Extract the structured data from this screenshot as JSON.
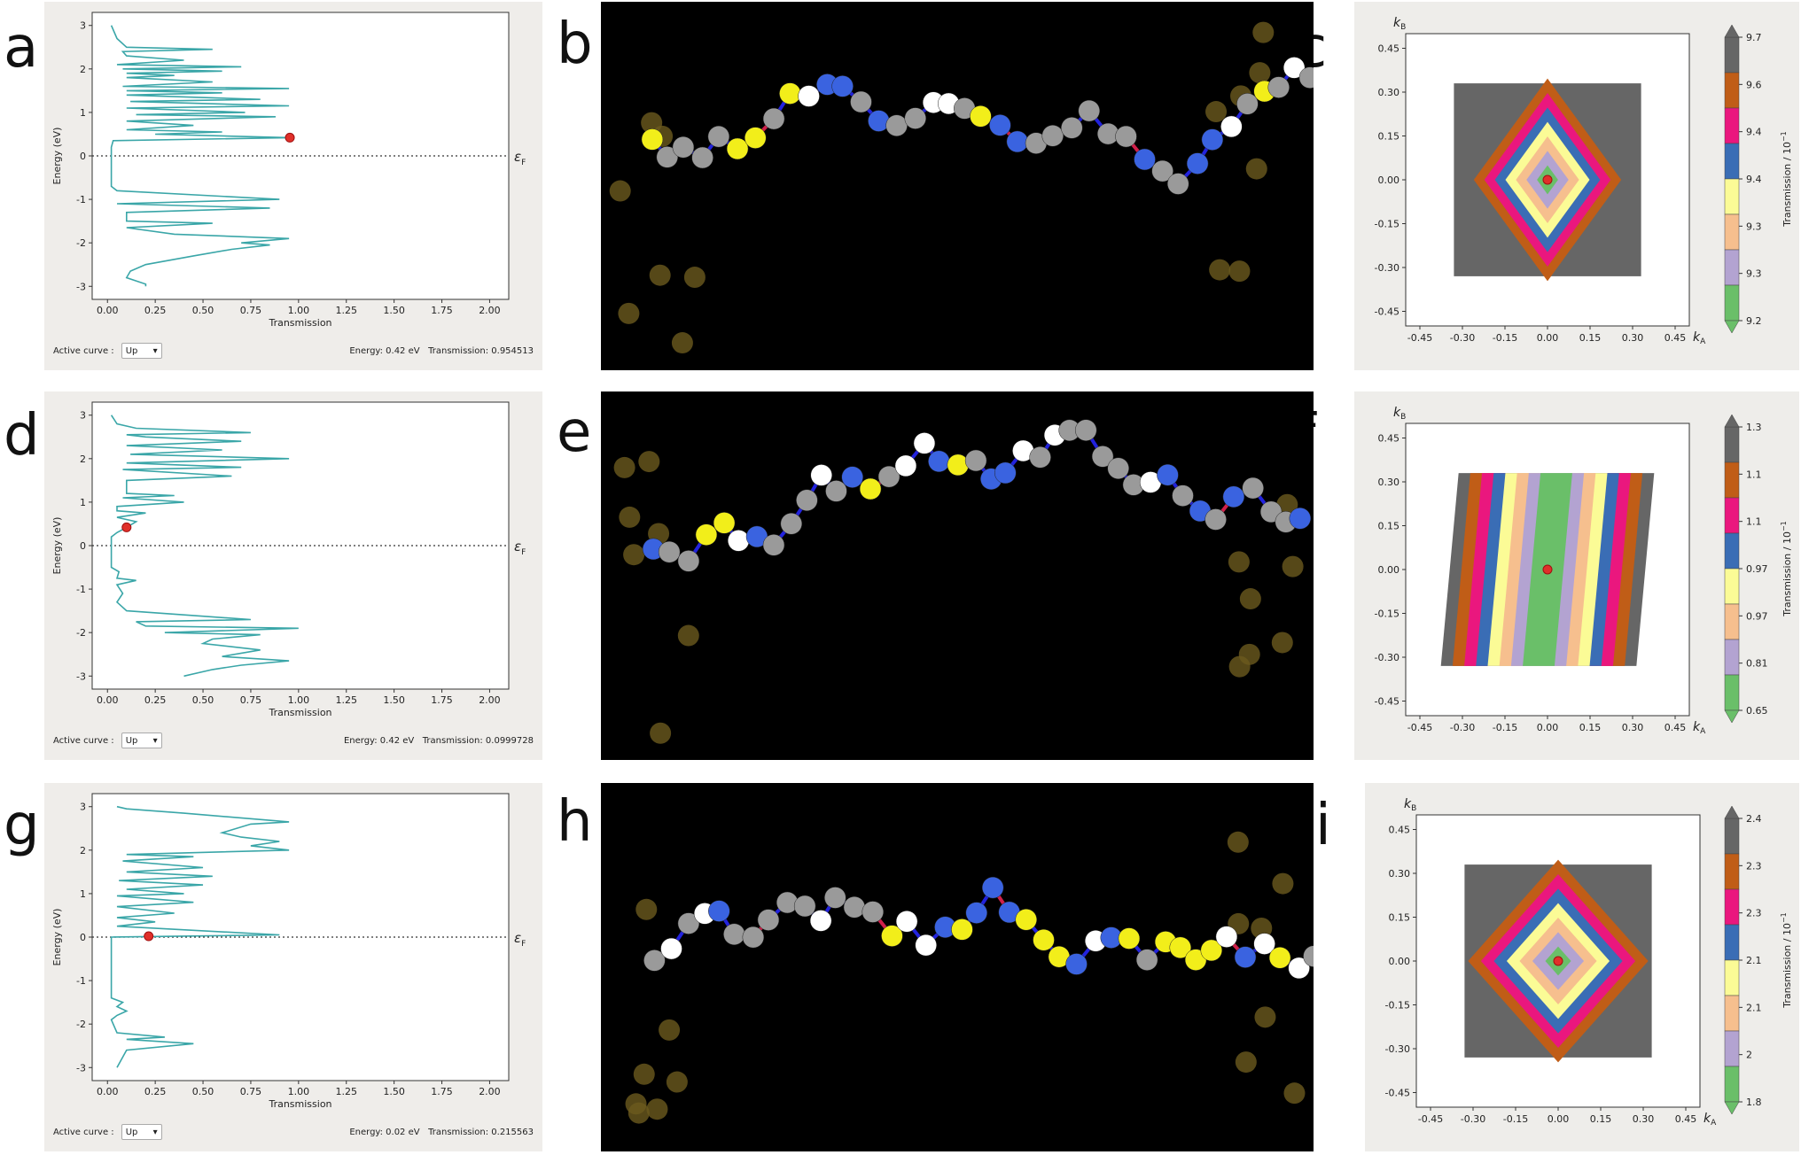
{
  "panel_labels": [
    "a",
    "b",
    "c",
    "d",
    "e",
    "f",
    "g",
    "h",
    "i"
  ],
  "transmission_panels": [
    {
      "id": "a",
      "active_curve_label": "Active curve :",
      "active_curve_value": "Up",
      "status": "Energy: 0.42 eV   Transmission: 0.954513",
      "fermi_label": "ε",
      "fermi_sub": "F",
      "marker": {
        "transmission": 0.954513,
        "energy": 0.42
      },
      "chart_data": {
        "type": "line",
        "xlabel": "Transmission",
        "ylabel": "Energy (eV)",
        "xlim": [
          -0.08,
          2.1
        ],
        "ylim": [
          -3.3,
          3.3
        ],
        "xticks": [
          "0.00",
          "0.25",
          "0.50",
          "0.75",
          "1.00",
          "1.25",
          "1.50",
          "1.75",
          "2.00"
        ],
        "yticks": [
          "-3",
          "-2",
          "-1",
          "0",
          "1",
          "2",
          "3"
        ],
        "series": [
          {
            "color": "#3aa6a8",
            "points": [
              [
                0.02,
                3.0
              ],
              [
                0.05,
                2.7
              ],
              [
                0.1,
                2.5
              ],
              [
                0.55,
                2.45
              ],
              [
                0.08,
                2.4
              ],
              [
                0.1,
                2.3
              ],
              [
                0.4,
                2.2
              ],
              [
                0.05,
                2.1
              ],
              [
                0.7,
                2.05
              ],
              [
                0.08,
                2.0
              ],
              [
                0.6,
                1.95
              ],
              [
                0.1,
                1.9
              ],
              [
                0.35,
                1.85
              ],
              [
                0.1,
                1.8
              ],
              [
                0.55,
                1.7
              ],
              [
                0.08,
                1.6
              ],
              [
                0.95,
                1.55
              ],
              [
                0.1,
                1.5
              ],
              [
                0.6,
                1.45
              ],
              [
                0.1,
                1.4
              ],
              [
                0.8,
                1.3
              ],
              [
                0.12,
                1.25
              ],
              [
                0.95,
                1.15
              ],
              [
                0.1,
                1.1
              ],
              [
                0.72,
                1.0
              ],
              [
                0.15,
                0.95
              ],
              [
                0.88,
                0.9
              ],
              [
                0.1,
                0.8
              ],
              [
                0.45,
                0.7
              ],
              [
                0.1,
                0.6
              ],
              [
                0.6,
                0.55
              ],
              [
                0.25,
                0.5
              ],
              [
                0.954,
                0.42
              ],
              [
                0.03,
                0.35
              ],
              [
                0.02,
                0.2
              ],
              [
                0.02,
                -0.7
              ],
              [
                0.05,
                -0.8
              ],
              [
                0.9,
                -1.0
              ],
              [
                0.05,
                -1.1
              ],
              [
                0.85,
                -1.2
              ],
              [
                0.1,
                -1.3
              ],
              [
                0.1,
                -1.5
              ],
              [
                0.55,
                -1.55
              ],
              [
                0.1,
                -1.65
              ],
              [
                0.35,
                -1.8
              ],
              [
                0.95,
                -1.9
              ],
              [
                0.7,
                -2.0
              ],
              [
                0.85,
                -2.05
              ],
              [
                0.65,
                -2.15
              ],
              [
                0.45,
                -2.3
              ],
              [
                0.2,
                -2.5
              ],
              [
                0.12,
                -2.65
              ],
              [
                0.1,
                -2.8
              ],
              [
                0.2,
                -2.95
              ],
              [
                0.2,
                -3.0
              ]
            ]
          }
        ]
      }
    },
    {
      "id": "d",
      "active_curve_label": "Active curve :",
      "active_curve_value": "Up",
      "status": "Energy: 0.42 eV   Transmission: 0.0999728",
      "fermi_label": "ε",
      "fermi_sub": "F",
      "marker": {
        "transmission": 0.0999728,
        "energy": 0.42
      },
      "chart_data": {
        "type": "line",
        "xlabel": "Transmission",
        "ylabel": "Energy (eV)",
        "xlim": [
          -0.08,
          2.1
        ],
        "ylim": [
          -3.3,
          3.3
        ],
        "xticks": [
          "0.00",
          "0.25",
          "0.50",
          "0.75",
          "1.00",
          "1.25",
          "1.50",
          "1.75",
          "2.00"
        ],
        "yticks": [
          "-3",
          "-2",
          "-1",
          "0",
          "1",
          "2",
          "3"
        ],
        "series": [
          {
            "color": "#3aa6a8",
            "points": [
              [
                0.02,
                3.0
              ],
              [
                0.05,
                2.8
              ],
              [
                0.15,
                2.7
              ],
              [
                0.75,
                2.6
              ],
              [
                0.1,
                2.55
              ],
              [
                0.2,
                2.5
              ],
              [
                0.7,
                2.4
              ],
              [
                0.1,
                2.3
              ],
              [
                0.6,
                2.2
              ],
              [
                0.12,
                2.1
              ],
              [
                0.95,
                2.0
              ],
              [
                0.1,
                1.9
              ],
              [
                0.7,
                1.8
              ],
              [
                0.08,
                1.75
              ],
              [
                0.65,
                1.6
              ],
              [
                0.1,
                1.5
              ],
              [
                0.1,
                1.2
              ],
              [
                0.35,
                1.15
              ],
              [
                0.08,
                1.1
              ],
              [
                0.4,
                1.0
              ],
              [
                0.05,
                0.9
              ],
              [
                0.05,
                0.8
              ],
              [
                0.2,
                0.75
              ],
              [
                0.05,
                0.65
              ],
              [
                0.15,
                0.55
              ],
              [
                0.1,
                0.42
              ],
              [
                0.05,
                0.3
              ],
              [
                0.02,
                0.2
              ],
              [
                0.02,
                -0.5
              ],
              [
                0.06,
                -0.6
              ],
              [
                0.05,
                -0.75
              ],
              [
                0.15,
                -0.8
              ],
              [
                0.05,
                -0.9
              ],
              [
                0.08,
                -1.1
              ],
              [
                0.05,
                -1.3
              ],
              [
                0.1,
                -1.5
              ],
              [
                0.75,
                -1.7
              ],
              [
                0.15,
                -1.75
              ],
              [
                0.2,
                -1.85
              ],
              [
                1.0,
                -1.9
              ],
              [
                0.3,
                -2.0
              ],
              [
                0.8,
                -2.05
              ],
              [
                0.55,
                -2.15
              ],
              [
                0.5,
                -2.25
              ],
              [
                0.8,
                -2.4
              ],
              [
                0.6,
                -2.55
              ],
              [
                0.95,
                -2.65
              ],
              [
                0.7,
                -2.75
              ],
              [
                0.55,
                -2.85
              ],
              [
                0.4,
                -3.0
              ]
            ]
          }
        ]
      }
    },
    {
      "id": "g",
      "active_curve_label": "Active curve :",
      "active_curve_value": "Up",
      "status": "Energy: 0.02 eV   Transmission: 0.215563",
      "fermi_label": "ε",
      "fermi_sub": "F",
      "marker": {
        "transmission": 0.215563,
        "energy": 0.02
      },
      "chart_data": {
        "type": "line",
        "xlabel": "Transmission",
        "ylabel": "Energy (eV)",
        "xlim": [
          -0.08,
          2.1
        ],
        "ylim": [
          -3.3,
          3.3
        ],
        "xticks": [
          "0.00",
          "0.25",
          "0.50",
          "0.75",
          "1.00",
          "1.25",
          "1.50",
          "1.75",
          "2.00"
        ],
        "yticks": [
          "-3",
          "-2",
          "-1",
          "0",
          "1",
          "2",
          "3"
        ],
        "series": [
          {
            "color": "#3aa6a8",
            "points": [
              [
                0.05,
                3.0
              ],
              [
                0.1,
                2.95
              ],
              [
                0.4,
                2.85
              ],
              [
                0.95,
                2.65
              ],
              [
                0.75,
                2.6
              ],
              [
                0.6,
                2.4
              ],
              [
                0.7,
                2.3
              ],
              [
                0.9,
                2.2
              ],
              [
                0.75,
                2.1
              ],
              [
                0.95,
                2.0
              ],
              [
                0.1,
                1.9
              ],
              [
                0.45,
                1.85
              ],
              [
                0.08,
                1.75
              ],
              [
                0.5,
                1.6
              ],
              [
                0.1,
                1.5
              ],
              [
                0.55,
                1.4
              ],
              [
                0.06,
                1.3
              ],
              [
                0.5,
                1.2
              ],
              [
                0.1,
                1.1
              ],
              [
                0.4,
                1.0
              ],
              [
                0.05,
                0.95
              ],
              [
                0.45,
                0.8
              ],
              [
                0.05,
                0.7
              ],
              [
                0.35,
                0.55
              ],
              [
                0.05,
                0.45
              ],
              [
                0.25,
                0.35
              ],
              [
                0.05,
                0.25
              ],
              [
                0.9,
                0.05
              ],
              [
                0.02,
                0.0
              ],
              [
                0.02,
                -1.4
              ],
              [
                0.08,
                -1.5
              ],
              [
                0.05,
                -1.6
              ],
              [
                0.1,
                -1.7
              ],
              [
                0.05,
                -1.8
              ],
              [
                0.02,
                -1.9
              ],
              [
                0.05,
                -2.2
              ],
              [
                0.3,
                -2.3
              ],
              [
                0.1,
                -2.35
              ],
              [
                0.45,
                -2.45
              ],
              [
                0.1,
                -2.6
              ],
              [
                0.05,
                -3.0
              ]
            ]
          }
        ]
      }
    }
  ],
  "kpoint_panels": [
    {
      "id": "c",
      "xlabel": "k",
      "xlabel_sub": "A",
      "ylabel": "k",
      "ylabel_sub": "B",
      "colorbar_label": "Transmission / 10",
      "colorbar_exp": "−1",
      "xticks": [
        "-0.45",
        "-0.30",
        "-0.15",
        "0.00",
        "0.15",
        "0.30",
        "0.45"
      ],
      "yticks": [
        "0.45",
        "0.30",
        "0.15",
        "0.00",
        "-0.15",
        "-0.30",
        "-0.45"
      ],
      "colorbar_ticks": [
        "9.7",
        "9.6",
        "9.4",
        "9.4",
        "9.3",
        "9.3",
        "9.2"
      ],
      "pattern": "diamond-vertical",
      "colors": [
        "#6abf69",
        "#b3a3d1",
        "#f6bf8e",
        "#fbfb96",
        "#3a6db5",
        "#ea177e",
        "#c05d17",
        "#666666"
      ]
    },
    {
      "id": "f",
      "xlabel": "k",
      "xlabel_sub": "A",
      "ylabel": "k",
      "ylabel_sub": "B",
      "colorbar_label": "Transmission / 10",
      "colorbar_exp": "−1",
      "xticks": [
        "-0.45",
        "-0.30",
        "-0.15",
        "0.00",
        "0.15",
        "0.30",
        "0.45"
      ],
      "yticks": [
        "0.45",
        "0.30",
        "0.15",
        "0.00",
        "-0.15",
        "-0.30",
        "-0.45"
      ],
      "colorbar_ticks": [
        "1.3",
        "1.1",
        "1.1",
        "0.97",
        "0.97",
        "0.81",
        "0.65"
      ],
      "pattern": "stripes-slanted",
      "colors": [
        "#6abf69",
        "#b3a3d1",
        "#f6bf8e",
        "#fbfb96",
        "#3a6db5",
        "#ea177e",
        "#c05d17",
        "#666666"
      ]
    },
    {
      "id": "i",
      "xlabel": "k",
      "xlabel_sub": "A",
      "ylabel": "k",
      "ylabel_sub": "B",
      "colorbar_label": "Transmission / 10",
      "colorbar_exp": "−1",
      "xticks": [
        "-0.45",
        "-0.30",
        "-0.15",
        "0.00",
        "0.15",
        "0.30",
        "0.45"
      ],
      "yticks": [
        "0.45",
        "0.30",
        "0.15",
        "0.00",
        "-0.15",
        "-0.30",
        "-0.45"
      ],
      "colorbar_ticks": [
        "2.4",
        "2.3",
        "2.3",
        "2.1",
        "2.1",
        "2",
        "1.8"
      ],
      "pattern": "diamond-concentric",
      "colors": [
        "#6abf69",
        "#b3a3d1",
        "#f6bf8e",
        "#fbfb96",
        "#3a6db5",
        "#ea177e",
        "#c05d17",
        "#666666"
      ]
    }
  ],
  "molecule_panels": [
    {
      "id": "b"
    },
    {
      "id": "e"
    },
    {
      "id": "h"
    }
  ]
}
